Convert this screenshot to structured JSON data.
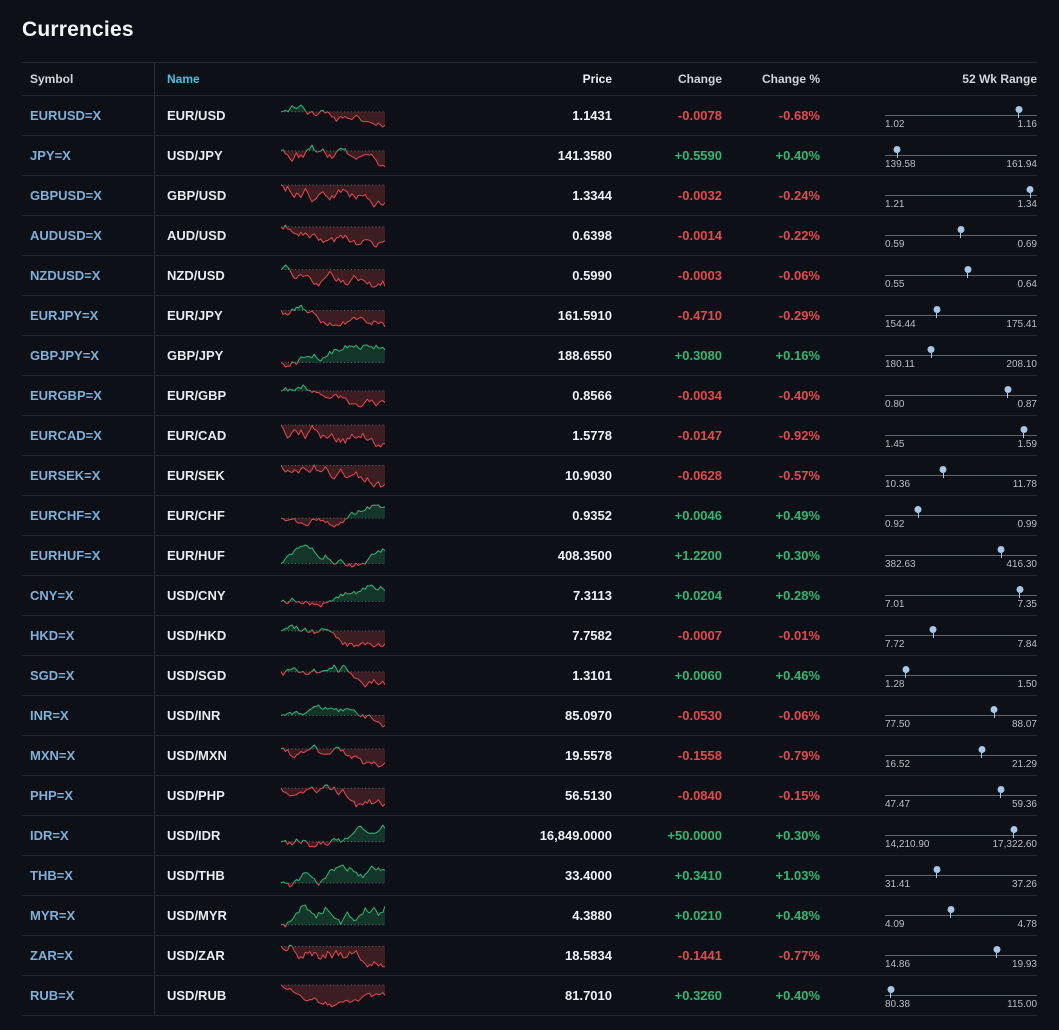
{
  "page": {
    "title": "Currencies"
  },
  "colors": {
    "up": "#2eb873",
    "down": "#e5484d",
    "link": "#7fb0d8",
    "name_header": "#46c0e0",
    "marker": "#a9c7e8"
  },
  "table": {
    "headers": {
      "symbol": "Symbol",
      "name": "Name",
      "price": "Price",
      "change": "Change",
      "change_pct": "Change %",
      "range": "52 Wk Range"
    }
  },
  "rows": [
    {
      "symbol": "EURUSD=X",
      "name": "EUR/USD",
      "price": "1.1431",
      "change": "-0.0078",
      "change_pct": "-0.68%",
      "dir": "down",
      "spark": "down",
      "range_low": "1.02",
      "range_high": "1.16"
    },
    {
      "symbol": "JPY=X",
      "name": "USD/JPY",
      "price": "141.3580",
      "change": "+0.5590",
      "change_pct": "+0.40%",
      "dir": "up",
      "spark": "down",
      "range_low": "139.58",
      "range_high": "161.94"
    },
    {
      "symbol": "GBPUSD=X",
      "name": "GBP/USD",
      "price": "1.3344",
      "change": "-0.0032",
      "change_pct": "-0.24%",
      "dir": "down",
      "spark": "down",
      "range_low": "1.21",
      "range_high": "1.34"
    },
    {
      "symbol": "AUDUSD=X",
      "name": "AUD/USD",
      "price": "0.6398",
      "change": "-0.0014",
      "change_pct": "-0.22%",
      "dir": "down",
      "spark": "down",
      "range_low": "0.59",
      "range_high": "0.69"
    },
    {
      "symbol": "NZDUSD=X",
      "name": "NZD/USD",
      "price": "0.5990",
      "change": "-0.0003",
      "change_pct": "-0.06%",
      "dir": "down",
      "spark": "down",
      "range_low": "0.55",
      "range_high": "0.64"
    },
    {
      "symbol": "EURJPY=X",
      "name": "EUR/JPY",
      "price": "161.5910",
      "change": "-0.4710",
      "change_pct": "-0.29%",
      "dir": "down",
      "spark": "down",
      "range_low": "154.44",
      "range_high": "175.41"
    },
    {
      "symbol": "GBPJPY=X",
      "name": "GBP/JPY",
      "price": "188.6550",
      "change": "+0.3080",
      "change_pct": "+0.16%",
      "dir": "up",
      "spark": "up",
      "range_low": "180.11",
      "range_high": "208.10"
    },
    {
      "symbol": "EURGBP=X",
      "name": "EUR/GBP",
      "price": "0.8566",
      "change": "-0.0034",
      "change_pct": "-0.40%",
      "dir": "down",
      "spark": "down",
      "range_low": "0.80",
      "range_high": "0.87"
    },
    {
      "symbol": "EURCAD=X",
      "name": "EUR/CAD",
      "price": "1.5778",
      "change": "-0.0147",
      "change_pct": "-0.92%",
      "dir": "down",
      "spark": "down",
      "range_low": "1.45",
      "range_high": "1.59"
    },
    {
      "symbol": "EURSEK=X",
      "name": "EUR/SEK",
      "price": "10.9030",
      "change": "-0.0628",
      "change_pct": "-0.57%",
      "dir": "down",
      "spark": "down",
      "range_low": "10.36",
      "range_high": "11.78"
    },
    {
      "symbol": "EURCHF=X",
      "name": "EUR/CHF",
      "price": "0.9352",
      "change": "+0.0046",
      "change_pct": "+0.49%",
      "dir": "up",
      "spark": "up",
      "range_low": "0.92",
      "range_high": "0.99"
    },
    {
      "symbol": "EURHUF=X",
      "name": "EUR/HUF",
      "price": "408.3500",
      "change": "+1.2200",
      "change_pct": "+0.30%",
      "dir": "up",
      "spark": "up",
      "range_low": "382.63",
      "range_high": "416.30"
    },
    {
      "symbol": "CNY=X",
      "name": "USD/CNY",
      "price": "7.3113",
      "change": "+0.0204",
      "change_pct": "+0.28%",
      "dir": "up",
      "spark": "up",
      "range_low": "7.01",
      "range_high": "7.35"
    },
    {
      "symbol": "HKD=X",
      "name": "USD/HKD",
      "price": "7.7582",
      "change": "-0.0007",
      "change_pct": "-0.01%",
      "dir": "down",
      "spark": "down",
      "range_low": "7.72",
      "range_high": "7.84"
    },
    {
      "symbol": "SGD=X",
      "name": "USD/SGD",
      "price": "1.3101",
      "change": "+0.0060",
      "change_pct": "+0.46%",
      "dir": "up",
      "spark": "down",
      "range_low": "1.28",
      "range_high": "1.50"
    },
    {
      "symbol": "INR=X",
      "name": "USD/INR",
      "price": "85.0970",
      "change": "-0.0530",
      "change_pct": "-0.06%",
      "dir": "down",
      "spark": "down",
      "range_low": "77.50",
      "range_high": "88.07"
    },
    {
      "symbol": "MXN=X",
      "name": "USD/MXN",
      "price": "19.5578",
      "change": "-0.1558",
      "change_pct": "-0.79%",
      "dir": "down",
      "spark": "down",
      "range_low": "16.52",
      "range_high": "21.29"
    },
    {
      "symbol": "PHP=X",
      "name": "USD/PHP",
      "price": "56.5130",
      "change": "-0.0840",
      "change_pct": "-0.15%",
      "dir": "down",
      "spark": "down",
      "range_low": "47.47",
      "range_high": "59.36"
    },
    {
      "symbol": "IDR=X",
      "name": "USD/IDR",
      "price": "16,849.0000",
      "change": "+50.0000",
      "change_pct": "+0.30%",
      "dir": "up",
      "spark": "up",
      "range_low": "14,210.90",
      "range_high": "17,322.60"
    },
    {
      "symbol": "THB=X",
      "name": "USD/THB",
      "price": "33.4000",
      "change": "+0.3410",
      "change_pct": "+1.03%",
      "dir": "up",
      "spark": "up",
      "range_low": "31.41",
      "range_high": "37.26"
    },
    {
      "symbol": "MYR=X",
      "name": "USD/MYR",
      "price": "4.3880",
      "change": "+0.0210",
      "change_pct": "+0.48%",
      "dir": "up",
      "spark": "up",
      "range_low": "4.09",
      "range_high": "4.78"
    },
    {
      "symbol": "ZAR=X",
      "name": "USD/ZAR",
      "price": "18.5834",
      "change": "-0.1441",
      "change_pct": "-0.77%",
      "dir": "down",
      "spark": "down",
      "range_low": "14.86",
      "range_high": "19.93"
    },
    {
      "symbol": "RUB=X",
      "name": "USD/RUB",
      "price": "81.7010",
      "change": "+0.3260",
      "change_pct": "+0.40%",
      "dir": "up",
      "spark": "down",
      "range_low": "80.38",
      "range_high": "115.00"
    }
  ]
}
